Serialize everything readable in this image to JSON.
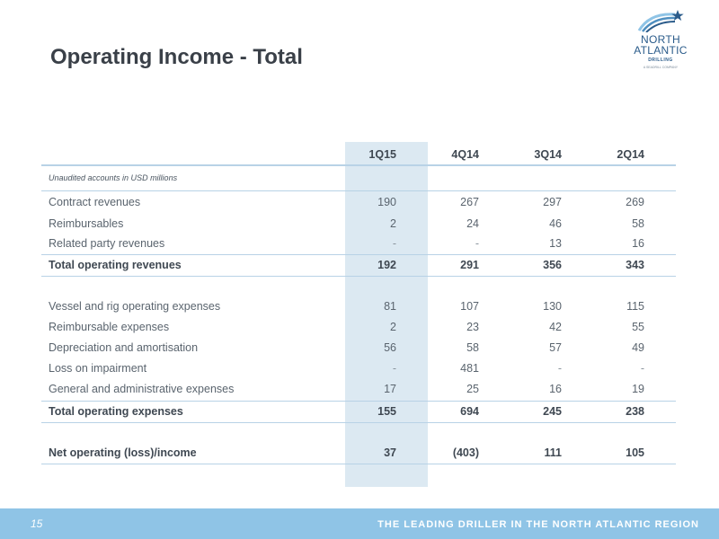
{
  "title": "Operating Income - Total",
  "logo": {
    "line1": "NORTH",
    "line2": "ATLANTIC",
    "line3": "DRILLING",
    "line4": "A SEADRILL COMPANY"
  },
  "table": {
    "columns": [
      "1Q15",
      "4Q14",
      "3Q14",
      "2Q14"
    ],
    "note": "Unaudited accounts in USD millions",
    "revenues": [
      {
        "label": "Contract revenues",
        "values": [
          "190",
          "267",
          "297",
          "269"
        ]
      },
      {
        "label": "Reimbursables",
        "values": [
          "2",
          "24",
          "46",
          "58"
        ]
      },
      {
        "label": "Related party revenues",
        "values": [
          "-",
          "-",
          "13",
          "16"
        ]
      }
    ],
    "total_revenues": {
      "label": "Total operating revenues",
      "values": [
        "192",
        "291",
        "356",
        "343"
      ]
    },
    "expenses": [
      {
        "label": "Vessel and rig operating expenses",
        "values": [
          "81",
          "107",
          "130",
          "115"
        ]
      },
      {
        "label": "Reimbursable expenses",
        "values": [
          "2",
          "23",
          "42",
          "55"
        ]
      },
      {
        "label": "Depreciation and amortisation",
        "values": [
          "56",
          "58",
          "57",
          "49"
        ]
      },
      {
        "label": "Loss on impairment",
        "values": [
          "-",
          "481",
          "-",
          "-"
        ]
      },
      {
        "label": "General and administrative expenses",
        "values": [
          "17",
          "25",
          "16",
          "19"
        ]
      }
    ],
    "total_expenses": {
      "label": "Total operating expenses",
      "values": [
        "155",
        "694",
        "245",
        "238"
      ]
    },
    "net": {
      "label": "Net operating (loss)/income",
      "values": [
        "37",
        "(403)",
        "111",
        "105"
      ]
    }
  },
  "footer": {
    "page": "15",
    "tagline": "THE LEADING DRILLER IN THE NORTH ATLANTIC REGION"
  },
  "colors": {
    "highlight_column": "#dce9f2",
    "rule": "#b8d2e6",
    "footer_band": "#8fc4e6",
    "logo_blue": "#2a5b8a"
  }
}
